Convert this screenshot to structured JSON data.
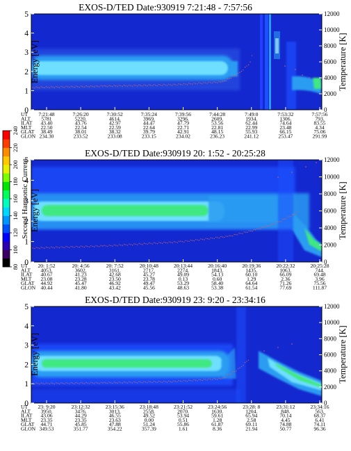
{
  "chart_data": [
    {
      "type": "heatmap",
      "title": "EXOS-D/TED   Date:930919  7:21:48 - 7:57:56",
      "ylabel": "Energy [eV]",
      "y2label": "Temperature [K]",
      "ylim": [
        0,
        5
      ],
      "y2lim": [
        0,
        12000
      ],
      "yticks": [
        "0",
        "1",
        "2",
        "3",
        "4",
        "5"
      ],
      "y2ticks": [
        "0",
        "2000",
        "4000",
        "6000",
        "8000",
        "10000",
        "12000"
      ],
      "grid": false,
      "row_labels": [
        "UT",
        "ALT",
        "ILAT",
        "MLT",
        "GLAT",
        "GLON"
      ],
      "columns": [
        [
          "7:21:48",
          "5781",
          "43.40",
          "22.50",
          "38.49",
          "234.30"
        ],
        [
          "7:26:20",
          "5220.",
          "43.76",
          "22.54",
          "38.01",
          "233.52"
        ],
        [
          "7:30:52",
          "4614.",
          "42.97",
          "22.59",
          "38.32",
          "233.08"
        ],
        [
          "7:35:24",
          "3969.",
          "44.47",
          "22.64",
          "39.79",
          "233.15"
        ],
        [
          "7:39:56",
          "3296.",
          "47.79",
          "22.71",
          "42.91",
          "234.02"
        ],
        [
          "7:44:28",
          "2609.",
          "53.56",
          "22.81",
          "48.15",
          "236.23"
        ],
        [
          "7:49:0",
          "1934.",
          "62.44",
          "22.99",
          "55.93",
          "241.12"
        ],
        [
          "7:53:32",
          "1306.",
          "74.64",
          "23.48",
          "66.15",
          "253.47"
        ],
        [
          "7:57:56",
          "793.",
          "83.55",
          "4.34",
          "75.06",
          "291.99"
        ]
      ]
    },
    {
      "type": "heatmap",
      "title": "EXOS-D/TED   Date:930919  20: 1:52 - 20:25:28",
      "ylabel": "Energy [eV]",
      "y2label": "Temperature [K]",
      "ylim": [
        0,
        5
      ],
      "y2lim": [
        0,
        12000
      ],
      "yticks": [
        "0",
        "1",
        "2",
        "3",
        "4",
        "5"
      ],
      "y2ticks": [
        "0",
        "2000",
        "4000",
        "6000",
        "8000",
        "10000",
        "12000"
      ],
      "grid": false,
      "row_labels": [
        "UT",
        "ALT",
        "ILAT",
        "MLT",
        "GLAT",
        "GLON"
      ],
      "columns": [
        [
          "20: 1:52",
          "4053.",
          "40.67",
          "23.08",
          "44.92",
          "40.44"
        ],
        [
          "20: 4:56",
          "3602.",
          "41.23",
          "23.28",
          "45.47",
          "41.80"
        ],
        [
          "20: 7:52",
          "3161.",
          "42.68",
          "23.50",
          "46.92",
          "43.42"
        ],
        [
          "20:10:48",
          "2717.",
          "45.27",
          "23.78",
          "49.47",
          "45.56"
        ],
        [
          "20:13:44",
          "2274.",
          "49.09",
          "0.13",
          "53.29",
          "48.63"
        ],
        [
          "20:16:40",
          "1843.",
          "54.13",
          "0.60",
          "58.40",
          "53.38"
        ],
        [
          "20:19:36",
          "1435.",
          "60.10",
          "1.29",
          "64.64",
          "61.54"
        ],
        [
          "20:22:32",
          "1063.",
          "66.09",
          "2.36",
          "71.26",
          "77.69"
        ],
        [
          "20:25:28",
          "744.",
          "69.48",
          "3.96",
          "75.56",
          "111.87"
        ]
      ]
    },
    {
      "type": "heatmap",
      "title": "EXOS-D/TED   Date:930919  23: 9:20 - 23:34:16",
      "ylabel": "Energy [eV]",
      "y2label": "Temperature [K]",
      "ylim": [
        0,
        5
      ],
      "y2lim": [
        0,
        12000
      ],
      "yticks": [
        "0",
        "1",
        "2",
        "3",
        "4",
        "5"
      ],
      "y2ticks": [
        "0",
        "2000",
        "4000",
        "6000",
        "8000",
        "10000",
        "12000"
      ],
      "grid": false,
      "row_labels": [
        "UT",
        "ALT",
        "ILAT",
        "MLT",
        "GLAT",
        "GLON"
      ],
      "columns": [
        [
          "23: 9:20",
          "3950.",
          "43.06",
          "23.35",
          "44.71",
          "349.53"
        ],
        [
          "23:12:32",
          "3476.",
          "44.29",
          "23.35",
          "45.85",
          "351.77"
        ],
        [
          "23:15:36",
          "3013.",
          "46.55",
          "23.63",
          "47.88",
          "354.22"
        ],
        [
          "23:18:48",
          "2558.",
          "49.52",
          "0.00",
          "51.24",
          "357.39"
        ],
        [
          "23:21:52",
          "2070.",
          "53.94",
          "0.51",
          "55.86",
          "1.61"
        ],
        [
          "23:24:56",
          "1630.",
          "59.61",
          "1.28",
          "61.87",
          "8.36"
        ],
        [
          "23:28: 8",
          "1204.",
          "65.94",
          "2.58",
          "69.11",
          "21.94"
        ],
        [
          "23:31:12",
          "848.",
          "70.14",
          "4.45",
          "74.88",
          "50.77"
        ],
        [
          "23:34:16",
          "563.",
          "68.37",
          "6.41",
          "74.11",
          "96.36"
        ]
      ]
    }
  ],
  "colorbar": {
    "label": "Second Harmonic Current",
    "ticks": [
      "80",
      "100",
      "120",
      "140",
      "160",
      "180",
      "200",
      "220",
      "240"
    ],
    "colors": [
      "#000000",
      "#3c0064",
      "#2a00b0",
      "#0000ff",
      "#0050ff",
      "#0096ff",
      "#00d7ff",
      "#00ffbe",
      "#00ff5a",
      "#00e600",
      "#78ff00",
      "#e6f000",
      "#ffc800",
      "#ff8c00",
      "#ff3c00",
      "#ff0000"
    ]
  },
  "colors": {
    "background": "#1428d0",
    "band_core": "#6edfff",
    "band_bright": "#3fe882",
    "temperature_dots": "#cc6666",
    "spike_white": "#ffffff"
  }
}
